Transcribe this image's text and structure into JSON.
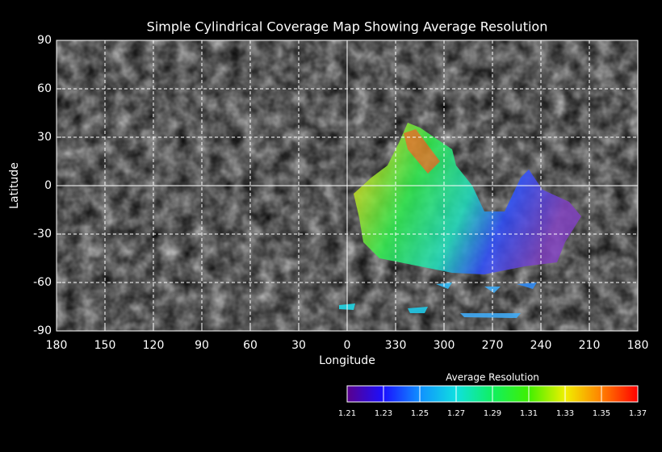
{
  "chart_data": {
    "type": "map",
    "title": "Simple Cylindrical Coverage Map Showing Average Resolution",
    "xlabel": "Longitude",
    "ylabel": "Latitude",
    "xlim": [
      180,
      -180
    ],
    "xticks": [
      180,
      150,
      120,
      90,
      60,
      30,
      0,
      {
        "value": -30,
        "label": "330"
      },
      {
        "value": -60,
        "label": "300"
      },
      {
        "value": -90,
        "label": "270"
      },
      {
        "value": -120,
        "label": "240"
      },
      {
        "value": -150,
        "label": "210"
      },
      {
        "value": -180,
        "label": "180"
      }
    ],
    "ylim": [
      -90,
      90
    ],
    "yticks": [
      90,
      60,
      30,
      0,
      -30,
      -60,
      -90
    ],
    "grid": true,
    "colorbar": {
      "title": "Average Resolution",
      "lim": [
        1.21,
        1.37
      ],
      "ticks": [
        1.21,
        1.23,
        1.25,
        1.27,
        1.29,
        1.31,
        1.33,
        1.35,
        1.37
      ],
      "colors": [
        "#5a008c",
        "#1a10ff",
        "#1090ff",
        "#10e0e0",
        "#10f060",
        "#40f000",
        "#f0f000",
        "#ff8000",
        "#ff0000"
      ]
    }
  }
}
